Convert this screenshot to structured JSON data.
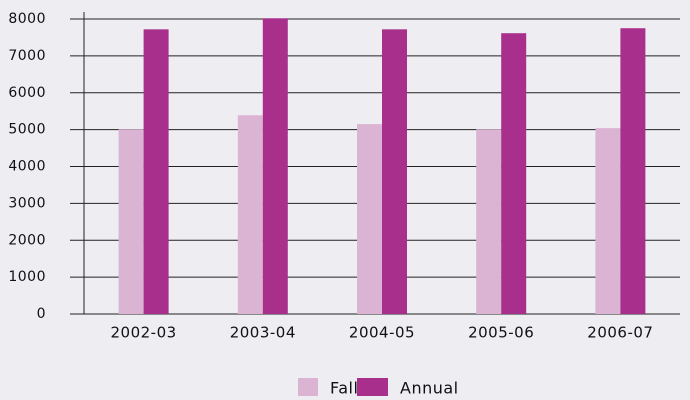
{
  "chart_data": {
    "type": "bar",
    "categories": [
      "2002-03",
      "2003-04",
      "2004-05",
      "2005-06",
      "2006-07"
    ],
    "series": [
      {
        "name": "Fall",
        "color": "#dbb4d4",
        "values": [
          5010,
          5390,
          5150,
          5010,
          5040
        ]
      },
      {
        "name": "Annual",
        "color": "#a8308c",
        "values": [
          7720,
          8020,
          7720,
          7615,
          7750
        ]
      }
    ],
    "ylim": [
      0,
      8000
    ],
    "yticks": [
      0,
      1000,
      2000,
      3000,
      4000,
      5000,
      6000,
      7000,
      8000
    ],
    "grid": true
  }
}
